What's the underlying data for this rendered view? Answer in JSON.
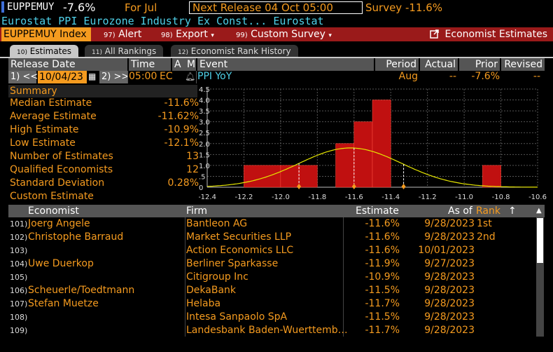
{
  "header": {
    "ticker": "EUPPEMUY",
    "change": "-7.6%",
    "for_label": "For Jul",
    "next_release": "Next Release 04 Oct 05:00",
    "survey": "Survey -11.6%",
    "subtitle_name": "Eurostat PPI Eurozone Industry Ex Const...",
    "subtitle_source": "Eurostat"
  },
  "menu": {
    "index": "EUPPEMUY Index",
    "alert_num": "97)",
    "alert": "Alert",
    "export_num": "98)",
    "export": "Export",
    "custom_num": "99)",
    "custom": "Custom Survey",
    "economist_estimates": "Economist Estimates"
  },
  "tabs": [
    {
      "num": "10)",
      "label": "Estimates"
    },
    {
      "num": "11)",
      "label": "All Rankings"
    },
    {
      "num": "12)",
      "label": "Economist Rank History"
    }
  ],
  "release_header": {
    "release_date": "Release Date",
    "time": "Time",
    "a": "A",
    "m": "M",
    "event": "Event",
    "period": "Period",
    "actual": "Actual",
    "prior": "Prior",
    "revised": "Revised"
  },
  "release_row": {
    "prev_btn": "1) <<",
    "date": "10/04/23",
    "next_btn": "2) >>",
    "time": "05:00",
    "region": "EC",
    "event": "PPI YoY",
    "period": "Aug",
    "actual": "--",
    "prior": "-7.6%",
    "revised": "--"
  },
  "summary": {
    "title": "Summary",
    "rows": [
      {
        "label": "Median Estimate",
        "value": "-11.6%"
      },
      {
        "label": "Average Estimate",
        "value": "-11.62%"
      },
      {
        "label": "High Estimate",
        "value": "-10.9%"
      },
      {
        "label": "Low Estimate",
        "value": "-12.1%"
      },
      {
        "label": "Number of Estimates",
        "value": "13"
      },
      {
        "label": "Qualified Economists",
        "value": "12"
      },
      {
        "label": "Standard Deviation",
        "value": "0.28%"
      },
      {
        "label": "Custom Estimate",
        "value": ""
      }
    ]
  },
  "chart_data": {
    "type": "bar",
    "x_ticks": [
      "-12.4",
      "-12.2",
      "-12.0",
      "-11.8",
      "-11.6",
      "-11.4",
      "-11.2",
      "-11.0",
      "-10.8",
      "-10.6"
    ],
    "y_ticks": [
      "0",
      ".5",
      "1.0",
      "1.5",
      "2.0",
      "2.5",
      "3.0",
      "3.5",
      "4.0",
      "4.5"
    ],
    "xlim": [
      -12.4,
      -10.6
    ],
    "ylim": [
      0,
      4.5
    ],
    "bins": [
      {
        "x0": -12.2,
        "x1": -12.0,
        "count": 1
      },
      {
        "x0": -12.0,
        "x1": -11.9,
        "count": 1
      },
      {
        "x0": -11.9,
        "x1": -11.8,
        "count": 1
      },
      {
        "x0": -11.7,
        "x1": -11.6,
        "count": 2
      },
      {
        "x0": -11.6,
        "x1": -11.5,
        "count": 3
      },
      {
        "x0": -11.5,
        "x1": -11.4,
        "count": 4
      },
      {
        "x0": -10.9,
        "x1": -10.8,
        "count": 1
      }
    ],
    "curve_mean": -11.62,
    "curve_sd": 0.28,
    "curve_peak": 1.8,
    "markers": [
      -11.9,
      -11.6,
      -11.33
    ],
    "colors": {
      "bar": "#c01010",
      "bar_edge": "#ff5040",
      "curve": "#e6e600",
      "grid": "#555555",
      "marker": "#f59b1f"
    }
  },
  "table": {
    "headers": {
      "economist": "Economist",
      "firm": "Firm",
      "estimate": "Estimate",
      "as_of": "As of",
      "rank": "Rank",
      "sort_icon": "↑"
    },
    "rows": [
      {
        "num": "101)",
        "economist": "Joerg Angele",
        "firm": "Bantleon AG",
        "estimate": "-11.6%",
        "as_of": "9/28/2023",
        "rank": "1st"
      },
      {
        "num": "102)",
        "economist": "Christophe Barraud",
        "firm": "Market Securities LLP",
        "estimate": "-11.6%",
        "as_of": "9/28/2023",
        "rank": "2nd"
      },
      {
        "num": "103)",
        "economist": "",
        "firm": "Action Economics LLC",
        "estimate": "-11.6%",
        "as_of": "10/01/2023",
        "rank": ""
      },
      {
        "num": "104)",
        "economist": "Uwe Duerkop",
        "firm": "Berliner Sparkasse",
        "estimate": "-11.9%",
        "as_of": "9/27/2023",
        "rank": ""
      },
      {
        "num": "105)",
        "economist": "",
        "firm": "Citigroup Inc",
        "estimate": "-10.9%",
        "as_of": "9/28/2023",
        "rank": ""
      },
      {
        "num": "106)",
        "economist": "Scheuerle/Toedtmann",
        "firm": "DekaBank",
        "estimate": "-11.5%",
        "as_of": "9/28/2023",
        "rank": ""
      },
      {
        "num": "107)",
        "economist": "Stefan Muetze",
        "firm": "Helaba",
        "estimate": "-11.7%",
        "as_of": "9/28/2023",
        "rank": ""
      },
      {
        "num": "108)",
        "economist": "",
        "firm": "Intesa Sanpaolo SpA",
        "estimate": "-11.5%",
        "as_of": "9/28/2023",
        "rank": ""
      },
      {
        "num": "109)",
        "economist": "",
        "firm": "Landesbank Baden-Wuerttemb…",
        "estimate": "-11.7%",
        "as_of": "9/28/2023",
        "rank": ""
      }
    ]
  }
}
